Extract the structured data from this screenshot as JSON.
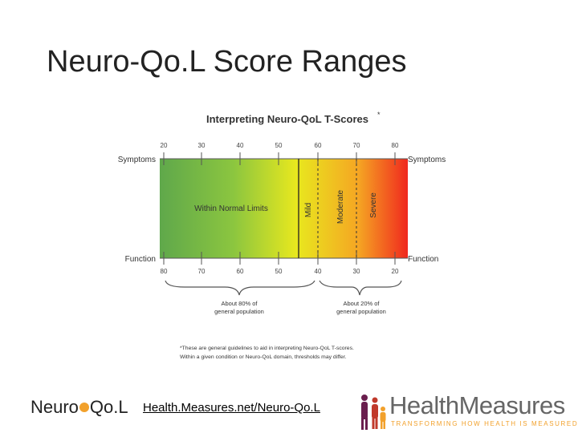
{
  "slide": {
    "title": "Neuro-Qo.L Score Ranges"
  },
  "figure": {
    "title": "Interpreting Neuro-QoL T-Scores",
    "title_mark": "*",
    "row_label_top_left": "Symptoms",
    "row_label_top_right": "Symptoms",
    "row_label_bottom_left": "Function",
    "row_label_bottom_right": "Function",
    "symptom_ticks": [
      "20",
      "30",
      "40",
      "50",
      "60",
      "70",
      "80"
    ],
    "function_ticks": [
      "80",
      "70",
      "60",
      "50",
      "40",
      "30",
      "20"
    ],
    "zones": {
      "normal": "Within Normal Limits",
      "mild": "Mild",
      "moderate": "Moderate",
      "severe": "Severe"
    },
    "population_left": [
      "About 80% of",
      "general population"
    ],
    "population_right": [
      "About 20% of",
      "general population"
    ],
    "footnote": [
      "*These are general guidelines to aid in interpreting Neuro-QoL T-scores.",
      "Within a given condition or Neuro-QoL domain, thresholds may differ."
    ],
    "gradient_colors": [
      "#5fa84b",
      "#8cc63f",
      "#e8e81e",
      "#f5a623",
      "#f0281e"
    ]
  },
  "footer": {
    "logo_left_a": "Neuro",
    "logo_left_b": "Qo.L",
    "link": "Health.Measures.net/Neuro-Qo.L",
    "logo_right_name": "HealthMeasures",
    "logo_right_tagline": "TRANSFORMING HOW HEALTH IS MEASURED"
  }
}
